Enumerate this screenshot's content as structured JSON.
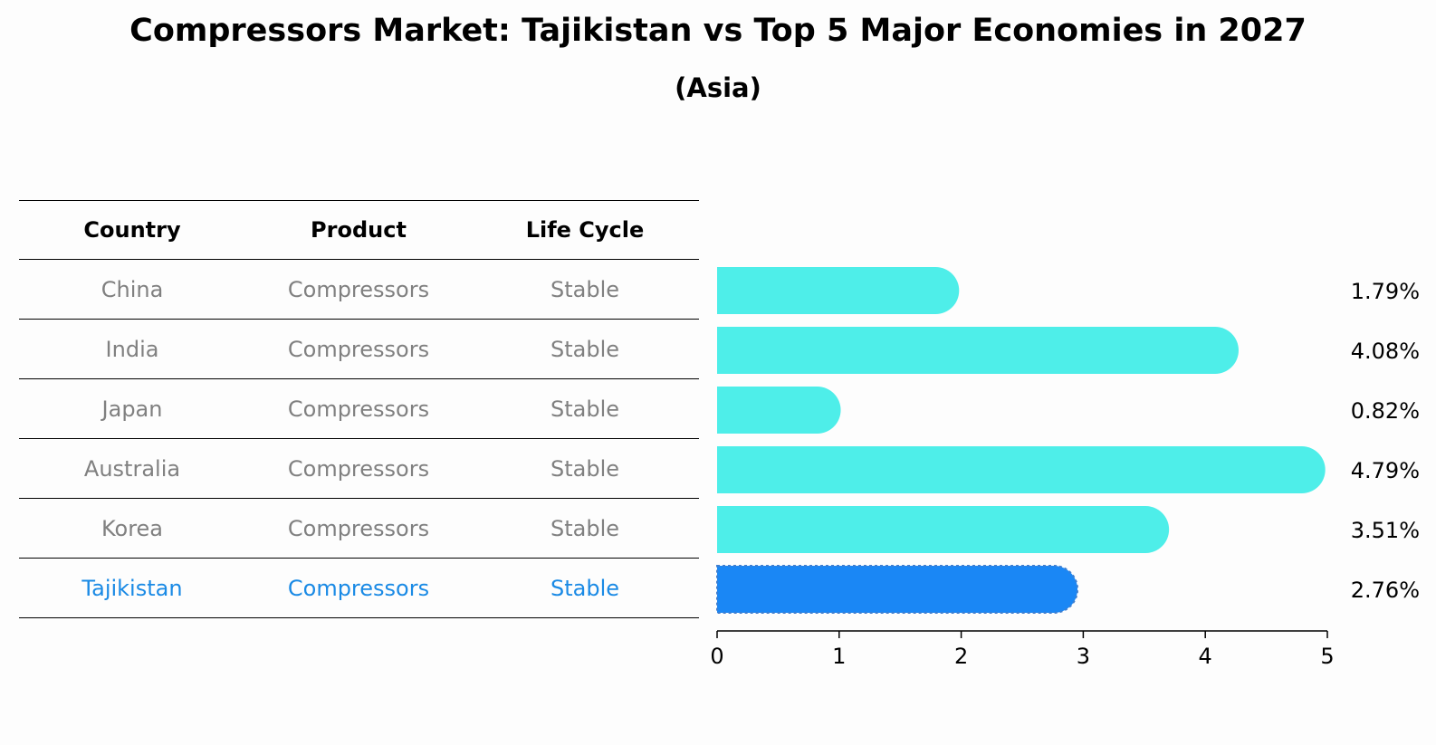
{
  "header": {
    "title": "Compressors Market: Tajikistan vs Top 5 Major Economies in 2027",
    "subtitle": "(Asia)"
  },
  "table": {
    "columns": [
      "Country",
      "Product",
      "Life Cycle"
    ],
    "rows": [
      {
        "country": "China",
        "product": "Compressors",
        "life_cycle": "Stable"
      },
      {
        "country": "India",
        "product": "Compressors",
        "life_cycle": "Stable"
      },
      {
        "country": "Japan",
        "product": "Compressors",
        "life_cycle": "Stable"
      },
      {
        "country": "Australia",
        "product": "Compressors",
        "life_cycle": "Stable"
      },
      {
        "country": "Korea",
        "product": "Compressors",
        "life_cycle": "Stable"
      },
      {
        "country": "Tajikistan",
        "product": "Compressors",
        "life_cycle": "Stable"
      }
    ]
  },
  "chart_data": {
    "type": "bar",
    "orientation": "horizontal",
    "categories": [
      "China",
      "India",
      "Japan",
      "Australia",
      "Korea",
      "Tajikistan"
    ],
    "values": [
      1.79,
      4.08,
      0.82,
      4.79,
      3.51,
      2.76
    ],
    "value_labels": [
      "1.79%",
      "4.08%",
      "0.82%",
      "4.79%",
      "3.51%",
      "2.76%"
    ],
    "highlight": "Tajikistan",
    "xlim": [
      0,
      5
    ],
    "xticks": [
      "0",
      "1",
      "2",
      "3",
      "4",
      "5"
    ],
    "grid": false,
    "colors": {
      "bar": "#4eeee9",
      "highlight": "#1a87f5"
    }
  }
}
